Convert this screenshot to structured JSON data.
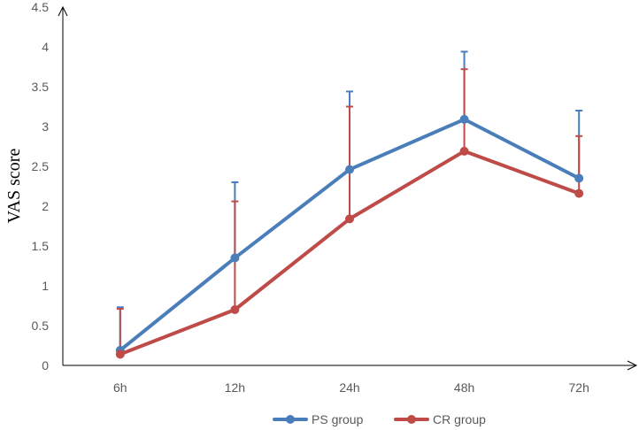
{
  "chart_data": {
    "type": "line",
    "ylabel": "VAS score",
    "xlabel": "",
    "categories": [
      "6h",
      "12h",
      "24h",
      "48h",
      "72h"
    ],
    "ylim": [
      0,
      4.5
    ],
    "yticks": [
      "0",
      "0.5",
      "1",
      "1.5",
      "2",
      "2.5",
      "3",
      "3.5",
      "4",
      "4.5"
    ],
    "grid": false,
    "legend_position": "bottom",
    "error_bars": "upper",
    "series": [
      {
        "name": "PS group",
        "color": "#4a7ebb",
        "values": [
          0.19,
          1.35,
          2.46,
          3.09,
          2.35
        ],
        "error_upper": [
          0.73,
          2.3,
          3.44,
          3.94,
          3.2
        ]
      },
      {
        "name": "CR group",
        "color": "#be4b48",
        "values": [
          0.14,
          0.7,
          1.84,
          2.69,
          2.16
        ],
        "error_upper": [
          0.71,
          2.06,
          3.25,
          3.72,
          2.88
        ]
      }
    ]
  }
}
